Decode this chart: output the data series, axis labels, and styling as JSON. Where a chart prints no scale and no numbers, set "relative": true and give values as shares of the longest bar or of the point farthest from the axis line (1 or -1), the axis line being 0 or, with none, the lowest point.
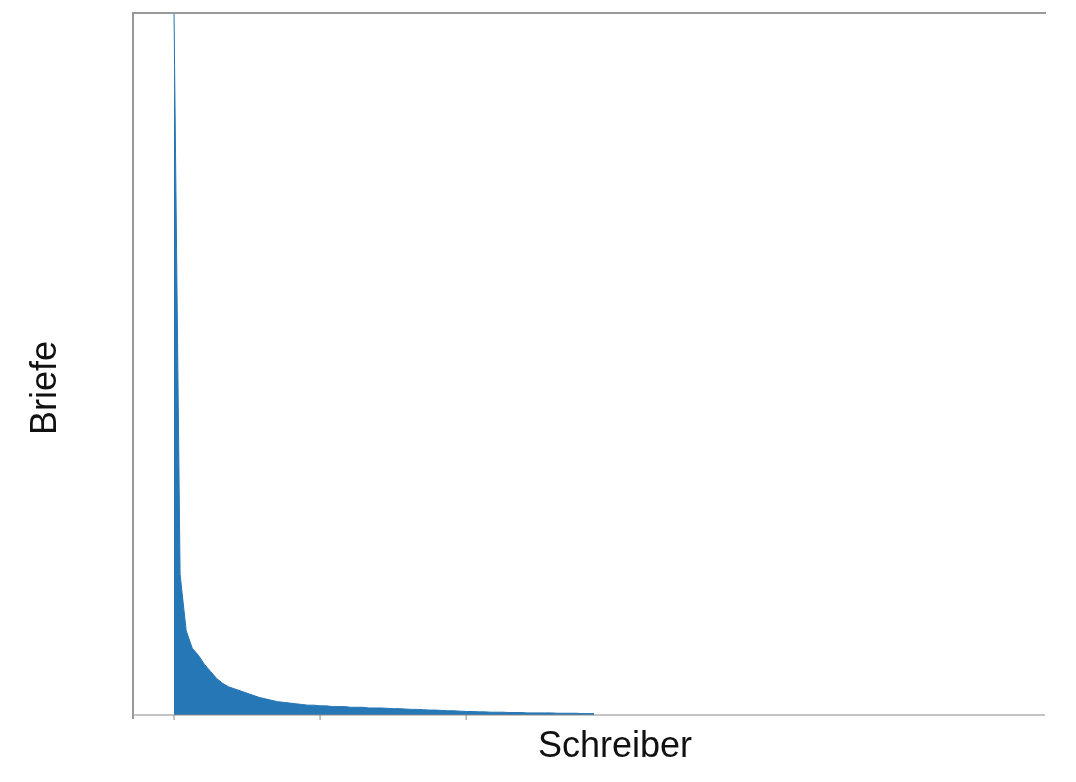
{
  "chart_data": {
    "type": "area",
    "xlabel": "Schreiber",
    "ylabel": "Briefe",
    "relative": true,
    "color": "#2677b6",
    "grid": false,
    "legend": false,
    "categories": [
      null,
      null,
      null,
      null,
      null,
      null,
      null,
      null,
      null,
      null,
      null,
      null,
      null,
      null,
      null,
      null,
      null,
      null,
      null,
      null,
      null,
      null,
      null,
      null,
      null,
      null,
      null,
      null,
      null,
      null,
      null,
      null,
      null,
      null,
      null,
      null,
      null,
      null,
      null,
      null,
      null,
      null,
      null,
      null,
      null,
      null,
      null,
      null,
      null,
      null,
      null,
      null,
      null,
      null,
      null,
      null,
      null,
      null,
      null,
      null,
      null,
      null,
      null,
      null,
      null,
      null,
      null,
      null,
      null,
      null
    ],
    "values": [
      1.0,
      0.2,
      0.12,
      0.095,
      0.085,
      0.072,
      0.062,
      0.052,
      0.045,
      0.04,
      0.037,
      0.034,
      0.031,
      0.028,
      0.025,
      0.023,
      0.021,
      0.019,
      0.018,
      0.017,
      0.016,
      0.015,
      0.014,
      0.014,
      0.013,
      0.013,
      0.012,
      0.012,
      0.012,
      0.011,
      0.011,
      0.011,
      0.01,
      0.01,
      0.01,
      0.0095,
      0.009,
      0.009,
      0.0085,
      0.008,
      0.008,
      0.0075,
      0.007,
      0.007,
      0.0065,
      0.006,
      0.006,
      0.0055,
      0.005,
      0.005,
      0.0045,
      0.0045,
      0.004,
      0.004,
      0.004,
      0.0035,
      0.0035,
      0.0035,
      0.003,
      0.003,
      0.003,
      0.003,
      0.003,
      0.0025,
      0.0025,
      0.0025,
      0.0025,
      0.002,
      0.002,
      0.002
    ]
  }
}
